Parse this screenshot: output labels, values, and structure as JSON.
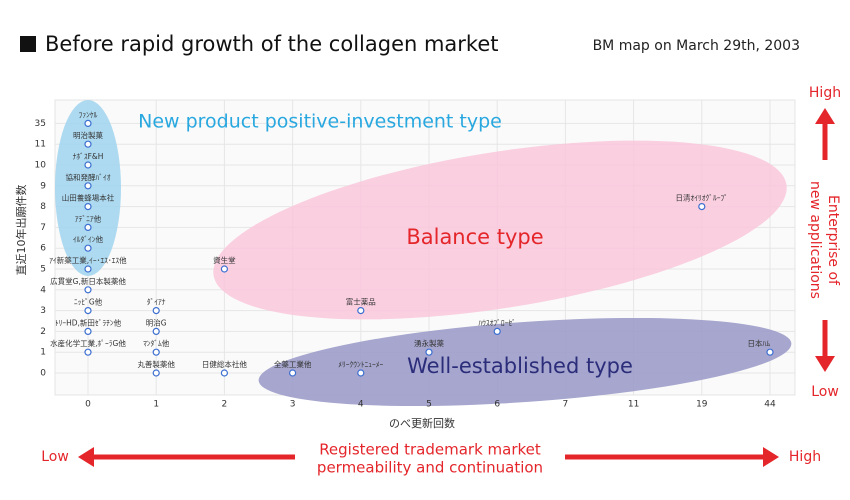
{
  "chart_data": {
    "type": "scatter",
    "title": "Before rapid growth of the collagen market",
    "subtitle": "BM map on March 29th, 2003",
    "x_label": "のべ更新回数",
    "y_label": "直近10年出願件数",
    "xticks": [
      0,
      1,
      2,
      3,
      4,
      5,
      6,
      7,
      11,
      19,
      44
    ],
    "yticks": [
      0,
      1,
      2,
      3,
      4,
      5,
      6,
      7,
      8,
      9,
      10,
      11,
      35
    ],
    "series": [
      {
        "color": "#3c6fd0",
        "labels": [
          "ﾌｧﾝｹﾙ",
          "明治製菓",
          "ﾅﾎﾞｽF&H",
          "協和発酵ﾊﾞｲｵ",
          "山田養蜂場本社",
          "ｱﾃﾞﾆｱ他",
          "ｲﾙﾀﾞｲﾝ他",
          "ｱｲ新薬工業,ｲｰ･ｴｽ･ｴｽ他",
          "広貫堂G,新日本製薬他",
          "ﾆｯﾋﾟG他",
          "ﾀﾞｲｱﾅ",
          "資生堂",
          "富士薬品",
          "ﾄﾘｰHD,新田ｾﾞﾗﾁﾝ他",
          "明治G",
          "ﾊｳｽｵﾌﾞﾛｰｾﾞ",
          "水産化学工業,ﾎﾟｰﾗG他",
          "ﾏﾝﾀﾞﾑ他",
          "湧永製薬",
          "日本ﾊﾑ",
          "日清ｵｲﾘｵｸﾞﾙｰﾌﾟ",
          "丸善製薬他",
          "日健総本社他",
          "全薬工業他",
          "ﾒﾘｰｸｳﾝﾄﾆｭｰﾒｰ"
        ],
        "x": [
          0,
          0,
          0,
          0,
          0,
          0,
          0,
          0,
          0,
          0,
          1,
          2,
          4,
          0,
          1,
          6,
          0,
          1,
          5,
          44,
          19,
          1,
          2,
          3,
          4
        ],
        "values": [
          35,
          11,
          10,
          9,
          8,
          7,
          6,
          5,
          4,
          3,
          3,
          5,
          3,
          2,
          2,
          2,
          1,
          1,
          1,
          1,
          8,
          0,
          0,
          0,
          0
        ]
      }
    ],
    "annotations": [
      "New product positive-investment type",
      "Balance type",
      "Well-established type"
    ],
    "y_direction": {
      "high": "High",
      "low": "Low",
      "label": [
        "Enterprise of",
        "new applications"
      ]
    },
    "x_direction": {
      "high": "High",
      "low": "Low",
      "label": [
        "Registered trademark market",
        "permeability and continuation"
      ]
    }
  }
}
